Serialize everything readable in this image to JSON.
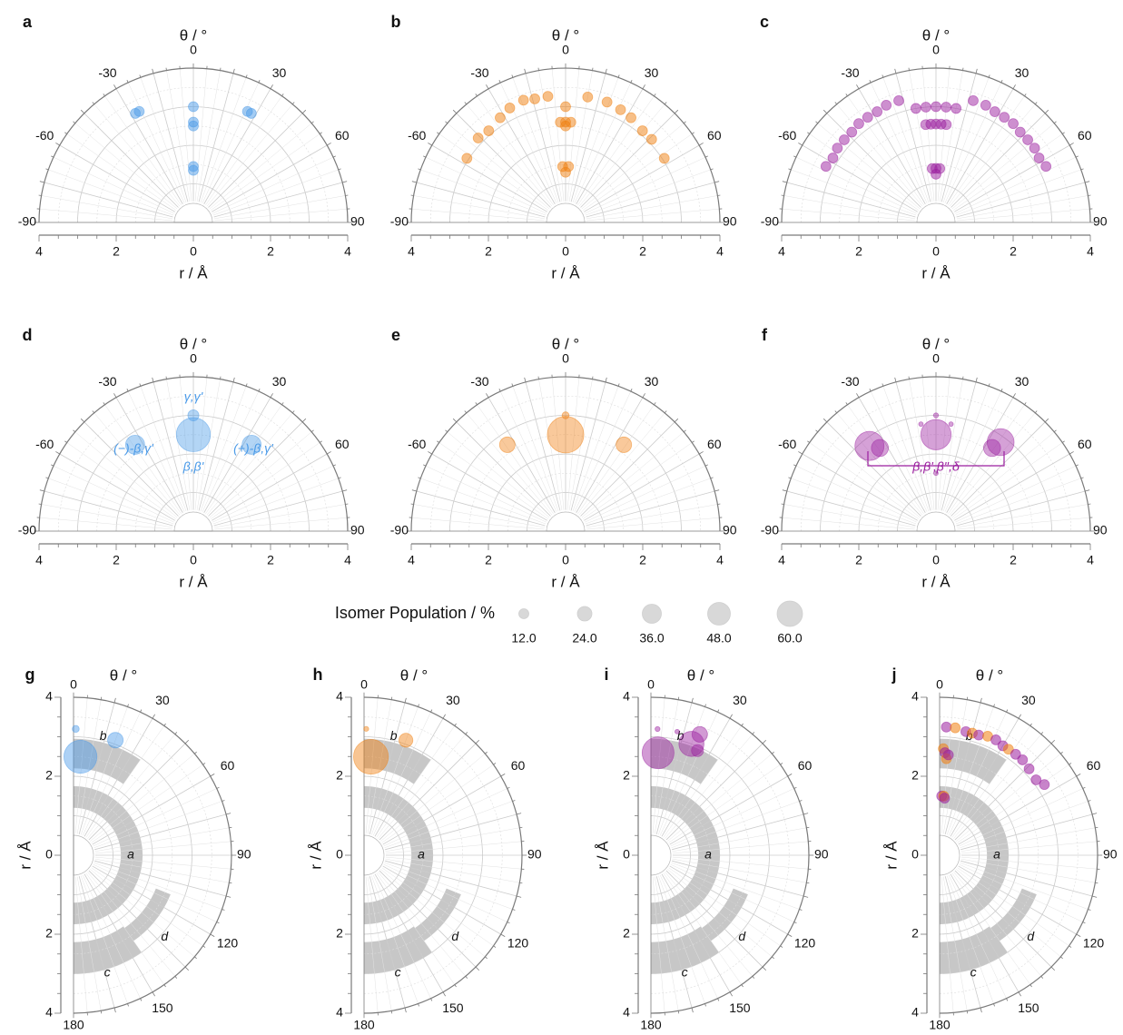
{
  "figure": {
    "legend": {
      "title": "Isomer Population / %",
      "sizes": [
        "12.0",
        "24.0",
        "36.0",
        "48.0",
        "60.0"
      ]
    }
  },
  "colors": {
    "blue": "#4a9ae8",
    "orange": "#f07f10",
    "purple": "#9b1f9f",
    "gray_region": "#bdbdbd",
    "grid": "#cccccc",
    "axis": "#7a7a7a"
  },
  "chart_data": [
    {
      "panel": "a",
      "type": "scatter",
      "coordinate_system": "polar_half_top",
      "title": "θ / °",
      "xlabel": "r / Å",
      "theta_ticks": [
        "-90",
        "-60",
        "-30",
        "0",
        "30",
        "60",
        "90"
      ],
      "r_ticks": [
        "4",
        "2",
        "0",
        "2",
        "4"
      ],
      "rlim": [
        0,
        4
      ],
      "color": "blue",
      "points": [
        {
          "r": 3.2,
          "theta": -28
        },
        {
          "r": 3.2,
          "theta": -26
        },
        {
          "r": 3.0,
          "theta": 0
        },
        {
          "r": 2.6,
          "theta": 0
        },
        {
          "r": 2.5,
          "theta": 0
        },
        {
          "r": 1.45,
          "theta": 0
        },
        {
          "r": 1.35,
          "theta": 0
        },
        {
          "r": 3.2,
          "theta": 26
        },
        {
          "r": 3.2,
          "theta": 28
        }
      ]
    },
    {
      "panel": "b",
      "type": "scatter",
      "coordinate_system": "polar_half_top",
      "title": "θ / °",
      "xlabel": "r / Å",
      "theta_ticks": [
        "-90",
        "-60",
        "-30",
        "0",
        "30",
        "60",
        "90"
      ],
      "r_ticks": [
        "4",
        "2",
        "0",
        "2",
        "4"
      ],
      "rlim": [
        0,
        4
      ],
      "color": "orange",
      "points": [
        {
          "r": 3.05,
          "theta": -57
        },
        {
          "r": 3.15,
          "theta": -46
        },
        {
          "r": 3.1,
          "theta": -40
        },
        {
          "r": 3.2,
          "theta": -32
        },
        {
          "r": 3.3,
          "theta": -26
        },
        {
          "r": 3.35,
          "theta": -19
        },
        {
          "r": 3.3,
          "theta": -14
        },
        {
          "r": 3.3,
          "theta": -8
        },
        {
          "r": 3.0,
          "theta": 0
        },
        {
          "r": 2.6,
          "theta": -3
        },
        {
          "r": 2.6,
          "theta": 0
        },
        {
          "r": 2.6,
          "theta": 3
        },
        {
          "r": 2.5,
          "theta": 0
        },
        {
          "r": 1.45,
          "theta": -3
        },
        {
          "r": 1.45,
          "theta": 3
        },
        {
          "r": 1.3,
          "theta": 0
        },
        {
          "r": 3.3,
          "theta": 10
        },
        {
          "r": 3.3,
          "theta": 19
        },
        {
          "r": 3.25,
          "theta": 26
        },
        {
          "r": 3.2,
          "theta": 32
        },
        {
          "r": 3.1,
          "theta": 40
        },
        {
          "r": 3.1,
          "theta": 46
        },
        {
          "r": 3.05,
          "theta": 57
        }
      ]
    },
    {
      "panel": "c",
      "type": "scatter",
      "coordinate_system": "polar_half_top",
      "title": "θ / °",
      "xlabel": "r / Å",
      "theta_ticks": [
        "-90",
        "-60",
        "-30",
        "0",
        "30",
        "60",
        "90"
      ],
      "r_ticks": [
        "4",
        "2",
        "0",
        "2",
        "4"
      ],
      "rlim": [
        0,
        4
      ],
      "color": "purple",
      "points": [
        {
          "r": 3.2,
          "theta": -63
        },
        {
          "r": 3.15,
          "theta": -58
        },
        {
          "r": 3.2,
          "theta": -53
        },
        {
          "r": 3.2,
          "theta": -48
        },
        {
          "r": 3.2,
          "theta": -43
        },
        {
          "r": 3.25,
          "theta": -38
        },
        {
          "r": 3.25,
          "theta": -33
        },
        {
          "r": 3.25,
          "theta": -28
        },
        {
          "r": 3.3,
          "theta": -23
        },
        {
          "r": 3.3,
          "theta": -17
        },
        {
          "r": 3.0,
          "theta": -10
        },
        {
          "r": 3.0,
          "theta": -5
        },
        {
          "r": 3.0,
          "theta": 0
        },
        {
          "r": 3.0,
          "theta": 5
        },
        {
          "r": 3.0,
          "theta": 10
        },
        {
          "r": 2.55,
          "theta": -6
        },
        {
          "r": 2.55,
          "theta": -3
        },
        {
          "r": 2.55,
          "theta": 0
        },
        {
          "r": 2.55,
          "theta": 3
        },
        {
          "r": 2.55,
          "theta": 6
        },
        {
          "r": 1.4,
          "theta": -4
        },
        {
          "r": 1.4,
          "theta": 0
        },
        {
          "r": 1.4,
          "theta": 4
        },
        {
          "r": 1.25,
          "theta": 0
        },
        {
          "r": 3.3,
          "theta": 17
        },
        {
          "r": 3.3,
          "theta": 23
        },
        {
          "r": 3.25,
          "theta": 28
        },
        {
          "r": 3.25,
          "theta": 33
        },
        {
          "r": 3.25,
          "theta": 38
        },
        {
          "r": 3.2,
          "theta": 43
        },
        {
          "r": 3.2,
          "theta": 48
        },
        {
          "r": 3.2,
          "theta": 53
        },
        {
          "r": 3.15,
          "theta": 58
        },
        {
          "r": 3.2,
          "theta": 63
        }
      ]
    },
    {
      "panel": "d",
      "type": "scatter",
      "coordinate_system": "polar_half_top",
      "title": "θ / °",
      "xlabel": "r / Å",
      "theta_ticks": [
        "-90",
        "-60",
        "-30",
        "0",
        "30",
        "60",
        "90"
      ],
      "r_ticks": [
        "4",
        "2",
        "0",
        "2",
        "4"
      ],
      "rlim": [
        0,
        4
      ],
      "color": "blue",
      "points": [
        {
          "r": 2.7,
          "theta": -34,
          "population": 15
        },
        {
          "r": 2.7,
          "theta": 34,
          "population": 15
        },
        {
          "r": 3.0,
          "theta": 0,
          "population": 5
        },
        {
          "r": 2.5,
          "theta": 0,
          "population": 48
        }
      ],
      "annotations": [
        "γ,γ'",
        "(−)-β,γ'",
        "β,β'",
        "(+)-β,γ'"
      ]
    },
    {
      "panel": "e",
      "type": "scatter",
      "coordinate_system": "polar_half_top",
      "title": "θ / °",
      "xlabel": "r / Å",
      "theta_ticks": [
        "-90",
        "-60",
        "-30",
        "0",
        "30",
        "60",
        "90"
      ],
      "r_ticks": [
        "4",
        "2",
        "0",
        "2",
        "4"
      ],
      "rlim": [
        0,
        4
      ],
      "color": "orange",
      "points": [
        {
          "r": 2.7,
          "theta": -34,
          "population": 10
        },
        {
          "r": 2.7,
          "theta": 34,
          "population": 10
        },
        {
          "r": 3.0,
          "theta": 0,
          "population": 2
        },
        {
          "r": 2.5,
          "theta": 0,
          "population": 55
        }
      ]
    },
    {
      "panel": "f",
      "type": "scatter",
      "coordinate_system": "polar_half_top",
      "title": "θ / °",
      "xlabel": "r / Å",
      "theta_ticks": [
        "-90",
        "-60",
        "-30",
        "0",
        "30",
        "60",
        "90"
      ],
      "r_ticks": [
        "4",
        "2",
        "0",
        "2",
        "4"
      ],
      "rlim": [
        0,
        4
      ],
      "color": "purple",
      "points": [
        {
          "r": 2.8,
          "theta": -38,
          "population": 35
        },
        {
          "r": 2.6,
          "theta": -34,
          "population": 12
        },
        {
          "r": 2.85,
          "theta": 36,
          "population": 30
        },
        {
          "r": 2.6,
          "theta": 34,
          "population": 12
        },
        {
          "r": 2.5,
          "theta": 0,
          "population": 38
        },
        {
          "r": 3.0,
          "theta": 0,
          "population": 1
        },
        {
          "r": 1.5,
          "theta": 0,
          "population": 0.5
        },
        {
          "r": 2.8,
          "theta": -8,
          "population": 0.3
        },
        {
          "r": 2.8,
          "theta": 8,
          "population": 0.3
        }
      ],
      "annotations": [
        "β,β',β'',δ"
      ]
    },
    {
      "panel": "g",
      "type": "scatter",
      "coordinate_system": "polar_half_right",
      "title": "θ / °",
      "ylabel": "r / Å",
      "theta_ticks": [
        "0",
        "30",
        "60",
        "90",
        "120",
        "150",
        "180"
      ],
      "r_ticks": [
        "4",
        "2",
        "0",
        "2",
        "4"
      ],
      "rlim": [
        0,
        4
      ],
      "color": "blue",
      "regions": [
        "a",
        "b",
        "c",
        "d"
      ],
      "points": [
        {
          "r": 3.2,
          "theta": 1,
          "population": 2
        },
        {
          "r": 2.5,
          "theta": 4,
          "population": 45
        },
        {
          "r": 3.1,
          "theta": 20,
          "population": 10
        }
      ]
    },
    {
      "panel": "h",
      "type": "scatter",
      "coordinate_system": "polar_half_right",
      "title": "θ / °",
      "ylabel": "r / Å",
      "theta_ticks": [
        "0",
        "30",
        "60",
        "90",
        "120",
        "150",
        "180"
      ],
      "r_ticks": [
        "4",
        "2",
        "0",
        "2",
        "4"
      ],
      "rlim": [
        0,
        4
      ],
      "color": "orange",
      "regions": [
        "a",
        "b",
        "c",
        "d"
      ],
      "points": [
        {
          "r": 3.2,
          "theta": 1,
          "population": 1
        },
        {
          "r": 2.5,
          "theta": 4,
          "population": 50
        },
        {
          "r": 3.1,
          "theta": 20,
          "population": 8
        }
      ]
    },
    {
      "panel": "i",
      "type": "scatter",
      "coordinate_system": "polar_half_right",
      "title": "θ / °",
      "ylabel": "r / Å",
      "theta_ticks": [
        "0",
        "30",
        "60",
        "90",
        "120",
        "150",
        "180"
      ],
      "r_ticks": [
        "4",
        "2",
        "0",
        "2",
        "4"
      ],
      "rlim": [
        0,
        4
      ],
      "color": "purple",
      "regions": [
        "a",
        "b",
        "c",
        "d"
      ],
      "points": [
        {
          "r": 2.6,
          "theta": 4,
          "population": 42
        },
        {
          "r": 3.2,
          "theta": 3,
          "population": 1
        },
        {
          "r": 3.0,
          "theta": 20,
          "population": 26
        },
        {
          "r": 3.3,
          "theta": 22,
          "population": 10
        },
        {
          "r": 2.9,
          "theta": 24,
          "population": 6
        },
        {
          "r": 3.2,
          "theta": 12,
          "population": 0.3
        }
      ]
    },
    {
      "panel": "j",
      "type": "scatter",
      "coordinate_system": "polar_half_right",
      "title": "θ / °",
      "ylabel": "r / Å",
      "theta_ticks": [
        "0",
        "30",
        "60",
        "90",
        "120",
        "150",
        "180"
      ],
      "r_ticks": [
        "4",
        "2",
        "0",
        "2",
        "4"
      ],
      "rlim": [
        0,
        4
      ],
      "color": "mixed",
      "regions": [
        "a",
        "b",
        "c",
        "d"
      ],
      "points": [
        {
          "r": 3.25,
          "theta": 3,
          "color": "purple"
        },
        {
          "r": 3.25,
          "theta": 7,
          "color": "orange"
        },
        {
          "r": 3.2,
          "theta": 12,
          "color": "purple"
        },
        {
          "r": 3.2,
          "theta": 15,
          "color": "orange"
        },
        {
          "r": 3.2,
          "theta": 18,
          "color": "purple"
        },
        {
          "r": 3.25,
          "theta": 22,
          "color": "orange"
        },
        {
          "r": 3.25,
          "theta": 26,
          "color": "purple"
        },
        {
          "r": 3.2,
          "theta": 30,
          "color": "purple"
        },
        {
          "r": 3.2,
          "theta": 33,
          "color": "orange"
        },
        {
          "r": 3.2,
          "theta": 37,
          "color": "purple"
        },
        {
          "r": 3.2,
          "theta": 41,
          "color": "purple"
        },
        {
          "r": 3.15,
          "theta": 46,
          "color": "purple"
        },
        {
          "r": 3.1,
          "theta": 52,
          "color": "purple"
        },
        {
          "r": 3.2,
          "theta": 56,
          "color": "purple"
        },
        {
          "r": 2.7,
          "theta": 2,
          "color": "orange"
        },
        {
          "r": 2.6,
          "theta": 3,
          "color": "purple"
        },
        {
          "r": 2.45,
          "theta": 4,
          "color": "orange"
        },
        {
          "r": 2.55,
          "theta": 5,
          "color": "purple"
        },
        {
          "r": 1.5,
          "theta": 2,
          "color": "purple"
        },
        {
          "r": 1.5,
          "theta": 4,
          "color": "orange"
        },
        {
          "r": 1.45,
          "theta": 5,
          "color": "purple"
        }
      ]
    }
  ]
}
